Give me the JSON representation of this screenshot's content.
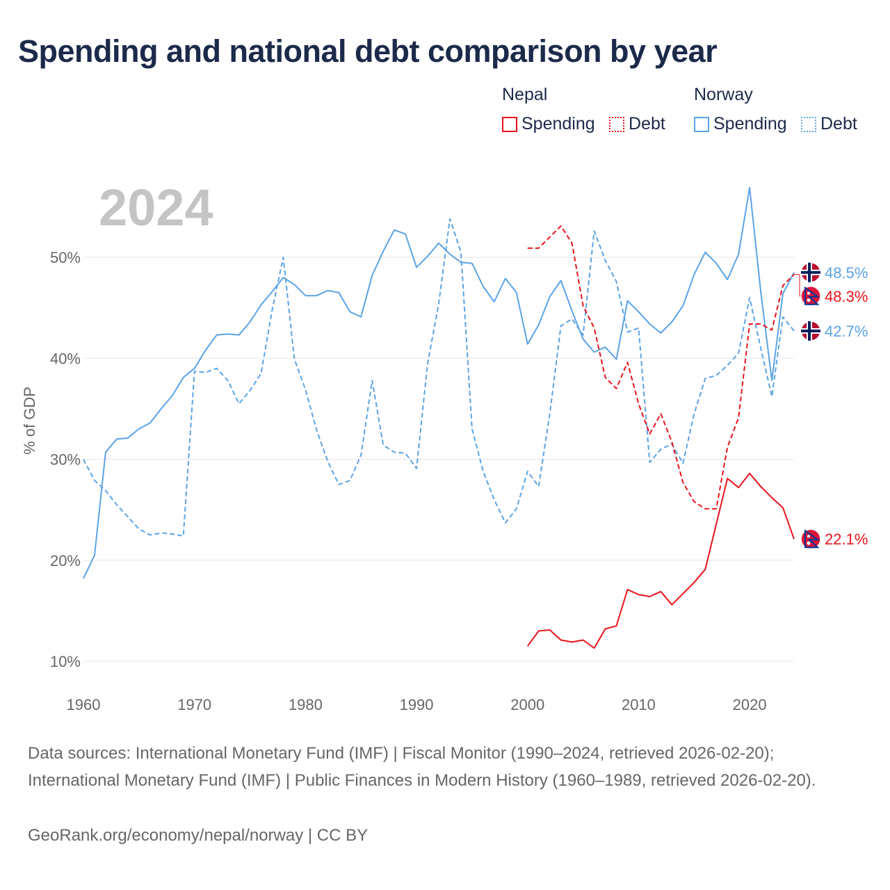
{
  "title": "Spending and national debt comparison by year",
  "year_watermark": "2024",
  "legend": {
    "groups": [
      {
        "name": "Nepal",
        "items": [
          {
            "label": "Spending",
            "style": "solid",
            "color": "#e8131b"
          },
          {
            "label": "Debt",
            "style": "dotted",
            "color": "#e8131b"
          }
        ]
      },
      {
        "name": "Norway",
        "items": [
          {
            "label": "Spending",
            "style": "solid",
            "color": "#5ba3e5"
          },
          {
            "label": "Debt",
            "style": "dotted",
            "color": "#5ba3e5"
          }
        ]
      }
    ]
  },
  "colors": {
    "nepal": "#e8131b",
    "norway": "#5ba3e5",
    "grid": "#e6e6e6",
    "axis_text": "#666666",
    "title": "#1c2a4a",
    "watermark": "#c4c4c4"
  },
  "chart_data": {
    "type": "line",
    "title": "Spending and national debt comparison by year",
    "xlabel": "",
    "ylabel": "% of GDP",
    "xlim": [
      1960,
      2024
    ],
    "ylim": [
      10,
      57
    ],
    "x_ticks": [
      1960,
      1970,
      1980,
      1990,
      2000,
      2010,
      2020
    ],
    "y_ticks": [
      10,
      20,
      30,
      40,
      50
    ],
    "y_tick_labels": [
      "10%",
      "20%",
      "30%",
      "40%",
      "50%"
    ],
    "series": [
      {
        "name": "Norway Spending",
        "country": "norway",
        "style": "solid",
        "x": [
          1960,
          1961,
          1962,
          1963,
          1964,
          1965,
          1966,
          1967,
          1968,
          1969,
          1970,
          1971,
          1972,
          1973,
          1974,
          1975,
          1976,
          1977,
          1978,
          1979,
          1980,
          1981,
          1982,
          1983,
          1984,
          1985,
          1986,
          1987,
          1988,
          1989,
          1990,
          1991,
          1992,
          1993,
          1994,
          1995,
          1996,
          1997,
          1998,
          1999,
          2000,
          2001,
          2002,
          2003,
          2004,
          2005,
          2006,
          2007,
          2008,
          2009,
          2010,
          2011,
          2012,
          2013,
          2014,
          2015,
          2016,
          2017,
          2018,
          2019,
          2020,
          2021,
          2022,
          2023,
          2024
        ],
        "values": [
          18.2,
          20.5,
          30.7,
          32.0,
          32.1,
          33.0,
          33.6,
          35.0,
          36.3,
          38.1,
          39.0,
          40.8,
          42.3,
          42.4,
          42.3,
          43.6,
          45.3,
          46.6,
          48.0,
          47.3,
          46.2,
          46.2,
          46.7,
          46.5,
          44.6,
          44.1,
          48.2,
          50.6,
          52.7,
          52.3,
          49.0,
          50.1,
          51.4,
          50.3,
          49.5,
          49.4,
          47.1,
          45.6,
          47.9,
          46.5,
          41.4,
          43.3,
          46.1,
          47.7,
          44.7,
          41.9,
          40.6,
          41.1,
          39.9,
          45.7,
          44.6,
          43.4,
          42.5,
          43.6,
          45.2,
          48.3,
          50.5,
          49.4,
          47.8,
          50.3,
          56.9,
          46.6,
          37.8,
          46.4,
          48.5
        ],
        "end_label": "48.5%"
      },
      {
        "name": "Norway Debt",
        "country": "norway",
        "style": "dashed",
        "x": [
          1960,
          1961,
          1962,
          1963,
          1964,
          1965,
          1966,
          1967,
          1968,
          1969,
          1970,
          1971,
          1972,
          1973,
          1974,
          1975,
          1976,
          1977,
          1978,
          1979,
          1980,
          1981,
          1982,
          1983,
          1984,
          1985,
          1986,
          1987,
          1988,
          1989,
          1990,
          1991,
          1992,
          1993,
          1994,
          1995,
          1996,
          1997,
          1998,
          1999,
          2000,
          2001,
          2002,
          2003,
          2004,
          2005,
          2006,
          2007,
          2008,
          2009,
          2010,
          2011,
          2012,
          2013,
          2014,
          2015,
          2016,
          2017,
          2018,
          2019,
          2020,
          2021,
          2022,
          2023,
          2024
        ],
        "values": [
          30.0,
          27.9,
          26.9,
          25.5,
          24.3,
          23.1,
          22.5,
          22.7,
          22.6,
          22.4,
          38.7,
          38.6,
          39.0,
          37.8,
          35.5,
          36.8,
          38.5,
          44.8,
          50.0,
          39.9,
          36.9,
          32.9,
          29.8,
          27.5,
          27.9,
          30.4,
          37.8,
          31.4,
          30.7,
          30.6,
          29.1,
          39.5,
          45.4,
          53.8,
          50.5,
          33.0,
          28.8,
          26.0,
          23.7,
          25.1,
          28.8,
          27.3,
          34.5,
          43.2,
          43.9,
          42.3,
          52.6,
          49.7,
          47.6,
          42.6,
          43.0,
          29.7,
          31.0,
          31.5,
          29.6,
          34.5,
          38.0,
          38.3,
          39.3,
          40.5,
          46.0,
          41.0,
          36.2,
          44.1,
          42.7
        ],
        "end_label": "42.7%"
      },
      {
        "name": "Nepal Spending",
        "country": "nepal",
        "style": "solid",
        "x": [
          2000,
          2001,
          2002,
          2003,
          2004,
          2005,
          2006,
          2007,
          2008,
          2009,
          2010,
          2011,
          2012,
          2013,
          2014,
          2015,
          2016,
          2017,
          2018,
          2019,
          2020,
          2021,
          2022,
          2023,
          2024
        ],
        "values": [
          11.5,
          13.0,
          13.1,
          12.1,
          11.9,
          12.1,
          11.3,
          13.2,
          13.5,
          17.1,
          16.6,
          16.4,
          16.9,
          15.6,
          16.7,
          17.8,
          19.1,
          23.6,
          28.1,
          27.2,
          28.6,
          27.3,
          26.2,
          25.2,
          22.1
        ],
        "end_label": "22.1%"
      },
      {
        "name": "Nepal Debt",
        "country": "nepal",
        "style": "dashed",
        "x": [
          2000,
          2001,
          2002,
          2003,
          2004,
          2005,
          2006,
          2007,
          2008,
          2009,
          2010,
          2011,
          2012,
          2013,
          2014,
          2015,
          2016,
          2017,
          2018,
          2019,
          2020,
          2021,
          2022,
          2023,
          2024
        ],
        "values": [
          50.9,
          50.9,
          52.0,
          53.1,
          51.4,
          45.2,
          43.0,
          38.1,
          37.0,
          39.6,
          35.5,
          32.5,
          34.5,
          31.7,
          27.7,
          25.8,
          25.1,
          25.1,
          31.2,
          34.1,
          43.4,
          43.4,
          42.8,
          47.2,
          48.3
        ],
        "end_label": "48.3%"
      }
    ]
  },
  "sources": {
    "text": "Data sources: International Monetary Fund (IMF) | Fiscal Monitor (1990–2024, retrieved 2026-02-20); International Monetary Fund (IMF) | Public Finances in Modern History (1960–1989, retrieved 2026-02-20).",
    "credit": "GeoRank.org/economy/nepal/norway | CC BY"
  }
}
